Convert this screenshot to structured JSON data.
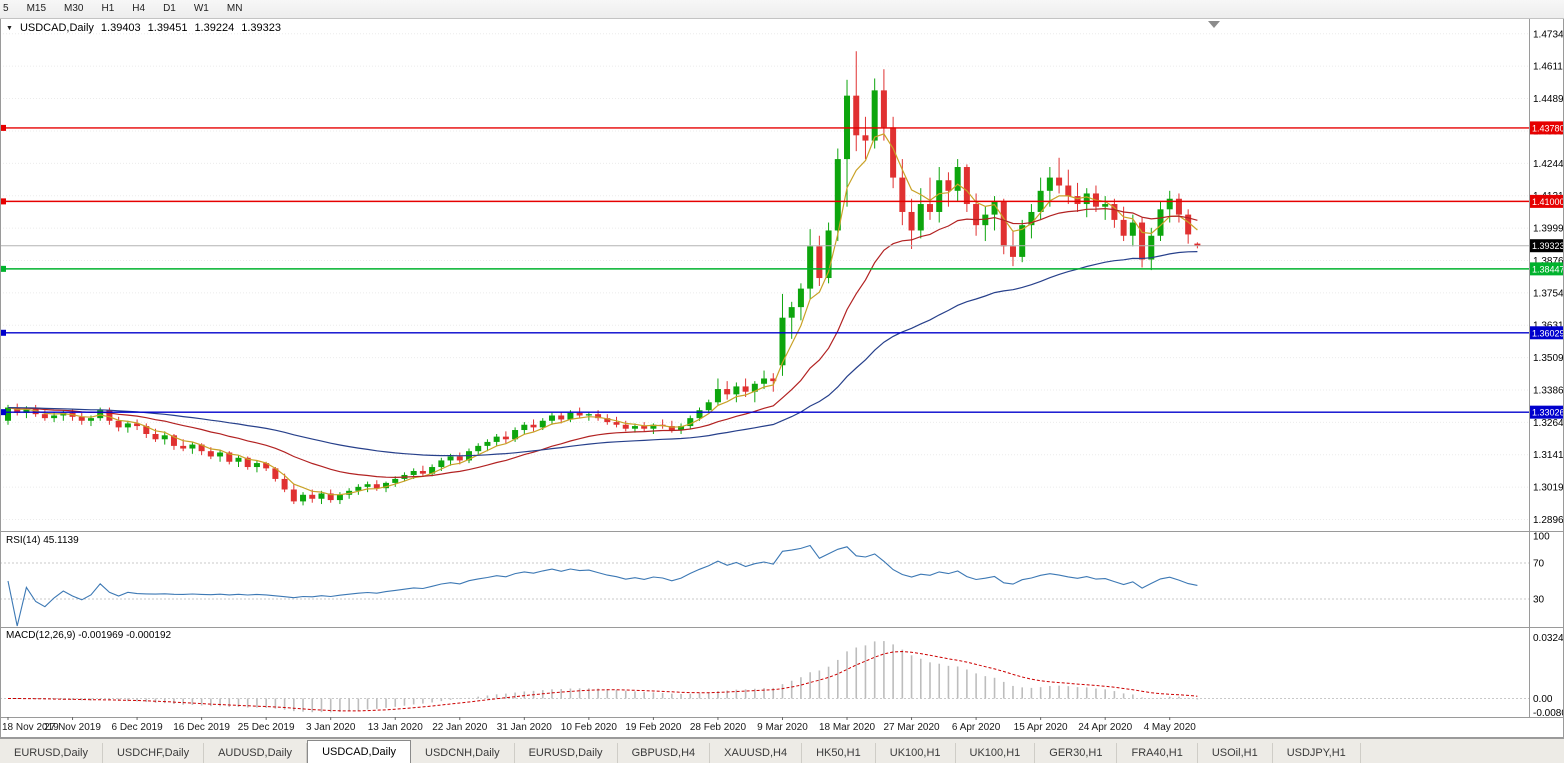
{
  "toolbar": {
    "timeframes": [
      "5",
      "M15",
      "M30",
      "H1",
      "H4",
      "D1",
      "W1",
      "MN"
    ]
  },
  "chart_header": {
    "symbol": "USDCAD,Daily",
    "open": "1.39403",
    "high": "1.39451",
    "low": "1.39224",
    "close": "1.39323"
  },
  "current_price": {
    "price": 1.39323,
    "label": "1.39323",
    "badge_color": "#000000"
  },
  "levels": [
    {
      "price": 1.4378,
      "label": "1.43780",
      "color": "#e60000",
      "type": "resistance-line"
    },
    {
      "price": 1.41,
      "label": "1.41000",
      "color": "#e60000",
      "type": "resistance-line"
    },
    {
      "price": 1.38447,
      "label": "1.38447",
      "color": "#00b22d",
      "type": "support-line"
    },
    {
      "price": 1.36029,
      "label": "1.36029",
      "color": "#0000cd",
      "type": "support-line"
    },
    {
      "price": 1.33026,
      "label": "1.33026",
      "color": "#0000cd",
      "type": "support-line"
    }
  ],
  "rsi": {
    "label": "RSI(14) 45.1139",
    "value": 45.1139,
    "period": 14,
    "axis": [
      100,
      70,
      30
    ],
    "color": "#3c78b4"
  },
  "macd": {
    "label": "MACD(12,26,9) -0.001969 -0.000192",
    "main": -0.001969,
    "signal": -0.000192,
    "axis": [
      "0.032493",
      "0.00",
      "-0.008086"
    ],
    "histogram_color": "#bdbdbd",
    "signal_color": "#cc0000"
  },
  "tabs": [
    {
      "label": "EURUSD,Daily",
      "active": false
    },
    {
      "label": "USDCHF,Daily",
      "active": false
    },
    {
      "label": "AUDUSD,Daily",
      "active": false
    },
    {
      "label": "USDCAD,Daily",
      "active": true
    },
    {
      "label": "USDCNH,Daily",
      "active": false
    },
    {
      "label": "EURUSD,Daily",
      "active": false
    },
    {
      "label": "GBPUSD,H4",
      "active": false
    },
    {
      "label": "XAUUSD,H4",
      "active": false
    },
    {
      "label": "HK50,H1",
      "active": false
    },
    {
      "label": "UK100,H1",
      "active": false
    },
    {
      "label": "UK100,H1",
      "active": false
    },
    {
      "label": "GER30,H1",
      "active": false
    },
    {
      "label": "FRA40,H1",
      "active": false
    },
    {
      "label": "USOil,H1",
      "active": false
    },
    {
      "label": "USDJPY,H1",
      "active": false
    }
  ],
  "chart_data": {
    "type": "candlestick",
    "symbol": "USDCAD",
    "timeframe": "Daily",
    "price_top": 1.479,
    "price_bottom": 1.2853,
    "price_ticks": [
      1.4734,
      1.46115,
      1.4489,
      1.43665,
      1.4244,
      1.41215,
      1.3999,
      1.38765,
      1.3754,
      1.36315,
      1.3509,
      1.33865,
      1.3264,
      1.31415,
      1.3019,
      1.28965
    ],
    "macd_range": [
      0.032493,
      -0.008086
    ],
    "colors": {
      "up": "#0da50d",
      "down": "#e03131",
      "ma_fast": "#c9a227",
      "ma_mid": "#b22222",
      "ma_slow": "#27408b"
    },
    "x_labels": [
      {
        "i": 0,
        "label": "18 Nov 2019"
      },
      {
        "i": 7,
        "label": "27 Nov 2019"
      },
      {
        "i": 14,
        "label": "6 Dec 2019"
      },
      {
        "i": 21,
        "label": "16 Dec 2019"
      },
      {
        "i": 28,
        "label": "25 Dec 2019"
      },
      {
        "i": 35,
        "label": "3 Jan 2020"
      },
      {
        "i": 42,
        "label": "13 Jan 2020"
      },
      {
        "i": 49,
        "label": "22 Jan 2020"
      },
      {
        "i": 56,
        "label": "31 Jan 2020"
      },
      {
        "i": 63,
        "label": "10 Feb 2020"
      },
      {
        "i": 70,
        "label": "19 Feb 2020"
      },
      {
        "i": 77,
        "label": "28 Feb 2020"
      },
      {
        "i": 84,
        "label": "9 Mar 2020"
      },
      {
        "i": 91,
        "label": "18 Mar 2020"
      },
      {
        "i": 98,
        "label": "27 Mar 2020"
      },
      {
        "i": 105,
        "label": "6 Apr 2020"
      },
      {
        "i": 112,
        "label": "15 Apr 2020"
      },
      {
        "i": 119,
        "label": "24 Apr 2020"
      },
      {
        "i": 126,
        "label": "4 May 2020"
      }
    ],
    "candles": [
      [
        1.327,
        1.333,
        1.3255,
        1.332
      ],
      [
        1.332,
        1.3335,
        1.329,
        1.33
      ],
      [
        1.33,
        1.3325,
        1.328,
        1.3315
      ],
      [
        1.3315,
        1.333,
        1.3285,
        1.3295
      ],
      [
        1.3295,
        1.331,
        1.327,
        1.328
      ],
      [
        1.328,
        1.3305,
        1.3265,
        1.329
      ],
      [
        1.329,
        1.331,
        1.327,
        1.33
      ],
      [
        1.33,
        1.3315,
        1.327,
        1.3285
      ],
      [
        1.3285,
        1.33,
        1.3255,
        1.327
      ],
      [
        1.327,
        1.329,
        1.325,
        1.328
      ],
      [
        1.328,
        1.332,
        1.327,
        1.331
      ],
      [
        1.331,
        1.332,
        1.3255,
        1.327
      ],
      [
        1.327,
        1.3285,
        1.323,
        1.3245
      ],
      [
        1.3245,
        1.327,
        1.3225,
        1.326
      ],
      [
        1.326,
        1.3275,
        1.3235,
        1.325
      ],
      [
        1.325,
        1.326,
        1.3205,
        1.322
      ],
      [
        1.322,
        1.324,
        1.319,
        1.32
      ],
      [
        1.32,
        1.323,
        1.318,
        1.3215
      ],
      [
        1.3215,
        1.322,
        1.316,
        1.3175
      ],
      [
        1.3175,
        1.32,
        1.3155,
        1.3165
      ],
      [
        1.3165,
        1.319,
        1.3145,
        1.318
      ],
      [
        1.318,
        1.3185,
        1.314,
        1.3155
      ],
      [
        1.3155,
        1.317,
        1.3125,
        1.3135
      ],
      [
        1.3135,
        1.316,
        1.3115,
        1.315
      ],
      [
        1.315,
        1.3155,
        1.3105,
        1.3115
      ],
      [
        1.3115,
        1.314,
        1.3095,
        1.313
      ],
      [
        1.313,
        1.3135,
        1.3085,
        1.3095
      ],
      [
        1.3095,
        1.312,
        1.3075,
        1.311
      ],
      [
        1.311,
        1.3115,
        1.308,
        1.309
      ],
      [
        1.309,
        1.3095,
        1.304,
        1.305
      ],
      [
        1.305,
        1.307,
        1.3,
        1.301
      ],
      [
        1.301,
        1.303,
        1.2955,
        1.2965
      ],
      [
        1.2965,
        1.3,
        1.295,
        1.299
      ],
      [
        1.299,
        1.301,
        1.296,
        1.2975
      ],
      [
        1.2975,
        1.3005,
        1.2955,
        1.2995
      ],
      [
        1.2995,
        1.301,
        1.296,
        1.297
      ],
      [
        1.297,
        1.3,
        1.2955,
        1.299
      ],
      [
        1.299,
        1.3015,
        1.2975,
        1.3005
      ],
      [
        1.3005,
        1.303,
        1.299,
        1.302
      ],
      [
        1.302,
        1.304,
        1.3,
        1.303
      ],
      [
        1.303,
        1.3045,
        1.3005,
        1.3015
      ],
      [
        1.3015,
        1.304,
        1.3,
        1.3035
      ],
      [
        1.3035,
        1.306,
        1.302,
        1.305
      ],
      [
        1.305,
        1.3075,
        1.304,
        1.3065
      ],
      [
        1.3065,
        1.309,
        1.305,
        1.308
      ],
      [
        1.308,
        1.31,
        1.306,
        1.307
      ],
      [
        1.307,
        1.3105,
        1.306,
        1.3095
      ],
      [
        1.3095,
        1.313,
        1.308,
        1.312
      ],
      [
        1.312,
        1.3145,
        1.31,
        1.3135
      ],
      [
        1.3135,
        1.315,
        1.3105,
        1.312
      ],
      [
        1.312,
        1.3165,
        1.311,
        1.3155
      ],
      [
        1.3155,
        1.3185,
        1.314,
        1.3175
      ],
      [
        1.3175,
        1.32,
        1.3155,
        1.319
      ],
      [
        1.319,
        1.322,
        1.3175,
        1.321
      ],
      [
        1.321,
        1.323,
        1.3185,
        1.32
      ],
      [
        1.32,
        1.3245,
        1.319,
        1.3235
      ],
      [
        1.3235,
        1.3265,
        1.322,
        1.3255
      ],
      [
        1.3255,
        1.3275,
        1.323,
        1.3245
      ],
      [
        1.3245,
        1.328,
        1.3235,
        1.327
      ],
      [
        1.327,
        1.33,
        1.3255,
        1.329
      ],
      [
        1.329,
        1.3305,
        1.326,
        1.3275
      ],
      [
        1.3275,
        1.331,
        1.3265,
        1.33
      ],
      [
        1.33,
        1.332,
        1.328,
        1.329
      ],
      [
        1.329,
        1.3305,
        1.327,
        1.3295
      ],
      [
        1.3295,
        1.331,
        1.327,
        1.328
      ],
      [
        1.328,
        1.3295,
        1.3255,
        1.3265
      ],
      [
        1.3265,
        1.3285,
        1.3245,
        1.3255
      ],
      [
        1.3255,
        1.327,
        1.323,
        1.324
      ],
      [
        1.324,
        1.326,
        1.3225,
        1.325
      ],
      [
        1.325,
        1.3265,
        1.323,
        1.324
      ],
      [
        1.324,
        1.326,
        1.322,
        1.3255
      ],
      [
        1.3255,
        1.3275,
        1.324,
        1.325
      ],
      [
        1.325,
        1.327,
        1.3225,
        1.3235
      ],
      [
        1.3235,
        1.326,
        1.322,
        1.325
      ],
      [
        1.325,
        1.329,
        1.324,
        1.328
      ],
      [
        1.328,
        1.332,
        1.327,
        1.331
      ],
      [
        1.331,
        1.335,
        1.33,
        1.334
      ],
      [
        1.334,
        1.343,
        1.333,
        1.339
      ],
      [
        1.339,
        1.342,
        1.335,
        1.337
      ],
      [
        1.337,
        1.3415,
        1.334,
        1.34
      ],
      [
        1.34,
        1.343,
        1.336,
        1.338
      ],
      [
        1.338,
        1.342,
        1.334,
        1.341
      ],
      [
        1.341,
        1.346,
        1.339,
        1.343
      ],
      [
        1.343,
        1.345,
        1.338,
        1.342
      ],
      [
        1.348,
        1.375,
        1.344,
        1.366
      ],
      [
        1.366,
        1.372,
        1.358,
        1.37
      ],
      [
        1.37,
        1.379,
        1.365,
        1.377
      ],
      [
        1.377,
        1.3995,
        1.373,
        1.393
      ],
      [
        1.393,
        1.397,
        1.378,
        1.381
      ],
      [
        1.381,
        1.402,
        1.379,
        1.399
      ],
      [
        1.399,
        1.43,
        1.395,
        1.426
      ],
      [
        1.426,
        1.456,
        1.408,
        1.45
      ],
      [
        1.45,
        1.4668,
        1.429,
        1.435
      ],
      [
        1.435,
        1.442,
        1.426,
        1.433
      ],
      [
        1.433,
        1.4565,
        1.43,
        1.452
      ],
      [
        1.452,
        1.46,
        1.433,
        1.438
      ],
      [
        1.438,
        1.442,
        1.415,
        1.419
      ],
      [
        1.419,
        1.426,
        1.401,
        1.406
      ],
      [
        1.406,
        1.411,
        1.392,
        1.399
      ],
      [
        1.399,
        1.415,
        1.396,
        1.409
      ],
      [
        1.409,
        1.419,
        1.403,
        1.406
      ],
      [
        1.406,
        1.423,
        1.402,
        1.418
      ],
      [
        1.418,
        1.421,
        1.408,
        1.414
      ],
      [
        1.414,
        1.426,
        1.41,
        1.423
      ],
      [
        1.423,
        1.424,
        1.406,
        1.409
      ],
      [
        1.409,
        1.413,
        1.397,
        1.401
      ],
      [
        1.401,
        1.408,
        1.395,
        1.405
      ],
      [
        1.405,
        1.412,
        1.399,
        1.41
      ],
      [
        1.41,
        1.411,
        1.39,
        1.393
      ],
      [
        1.393,
        1.399,
        1.3855,
        1.389
      ],
      [
        1.389,
        1.403,
        1.387,
        1.401
      ],
      [
        1.401,
        1.409,
        1.396,
        1.406
      ],
      [
        1.406,
        1.419,
        1.403,
        1.414
      ],
      [
        1.414,
        1.423,
        1.408,
        1.419
      ],
      [
        1.419,
        1.4265,
        1.413,
        1.416
      ],
      [
        1.416,
        1.422,
        1.409,
        1.412
      ],
      [
        1.412,
        1.417,
        1.406,
        1.409
      ],
      [
        1.409,
        1.415,
        1.404,
        1.413
      ],
      [
        1.413,
        1.416,
        1.406,
        1.408
      ],
      [
        1.408,
        1.412,
        1.403,
        1.409
      ],
      [
        1.409,
        1.411,
        1.4,
        1.403
      ],
      [
        1.403,
        1.408,
        1.395,
        1.397
      ],
      [
        1.397,
        1.405,
        1.393,
        1.402
      ],
      [
        1.402,
        1.404,
        1.385,
        1.388
      ],
      [
        1.388,
        1.4,
        1.384,
        1.397
      ],
      [
        1.397,
        1.41,
        1.395,
        1.407
      ],
      [
        1.407,
        1.414,
        1.402,
        1.411
      ],
      [
        1.411,
        1.413,
        1.402,
        1.405
      ],
      [
        1.405,
        1.407,
        1.394,
        1.3975
      ],
      [
        1.39403,
        1.39451,
        1.39224,
        1.39323
      ]
    ]
  }
}
